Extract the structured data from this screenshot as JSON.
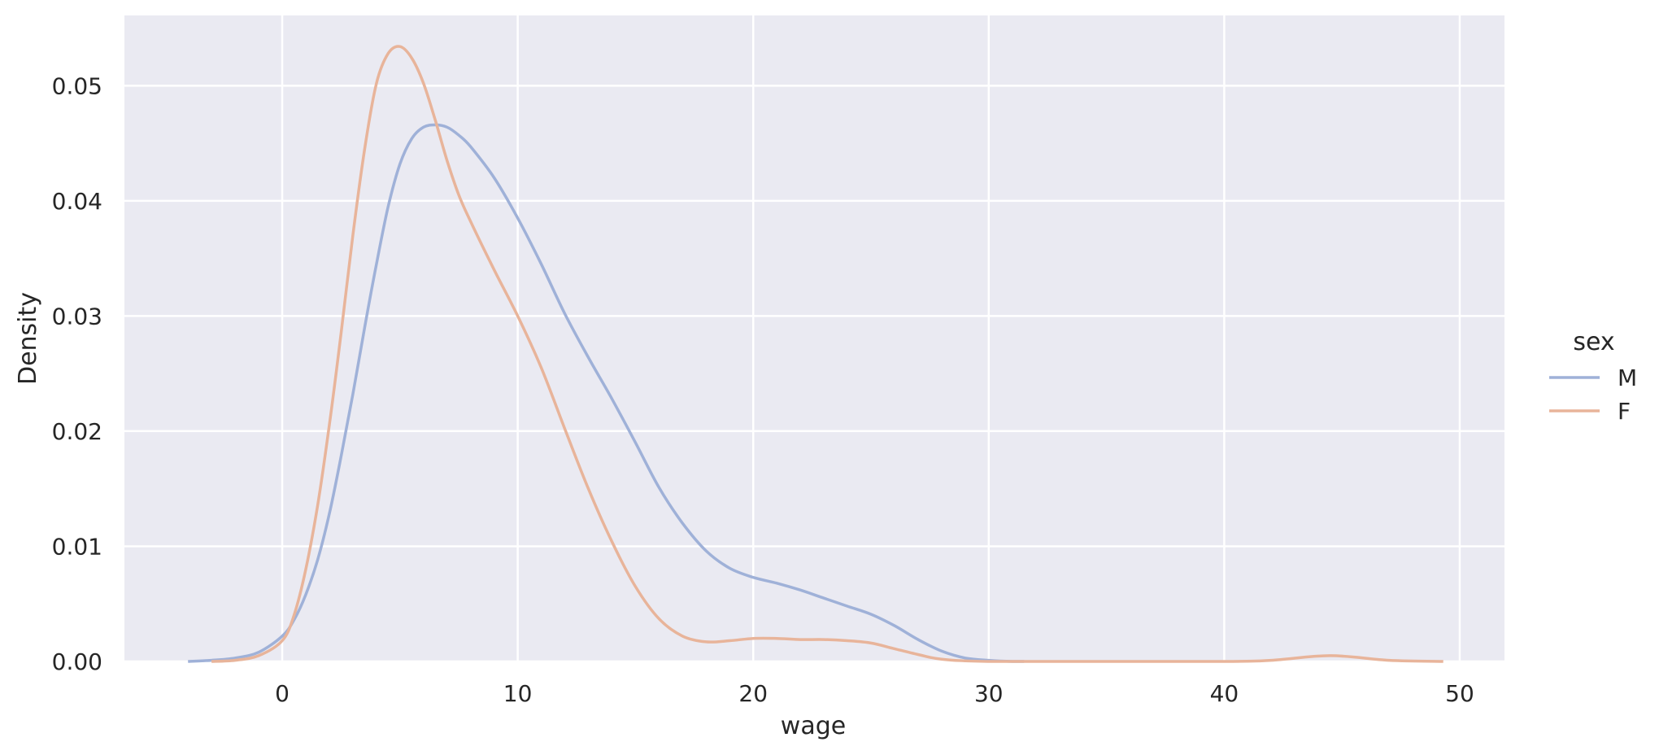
{
  "chart_data": {
    "type": "line",
    "title": "",
    "xlabel": "wage",
    "ylabel": "Density",
    "xlim": [
      -6.7,
      51.9
    ],
    "ylim": [
      0,
      0.0561
    ],
    "xticks": [
      0,
      10,
      20,
      30,
      40,
      50
    ],
    "xtick_labels": [
      "0",
      "10",
      "20",
      "30",
      "40",
      "50"
    ],
    "yticks": [
      0,
      0.01,
      0.02,
      0.03,
      0.04,
      0.05
    ],
    "ytick_labels": [
      "0.00",
      "0.01",
      "0.02",
      "0.03",
      "0.04",
      "0.05"
    ],
    "grid": true,
    "background": "#eaeaf2",
    "legend": {
      "title": "sex",
      "placement": "right"
    },
    "series": [
      {
        "name": "M",
        "color": "#9fb1d8",
        "x": [
          -4,
          -3,
          -2,
          -1,
          0,
          0.5,
          1,
          1.5,
          2,
          2.5,
          3,
          3.5,
          4,
          4.5,
          5,
          5.5,
          6,
          6.5,
          7,
          7.5,
          8,
          9,
          10,
          11,
          12,
          13,
          14,
          15,
          16,
          17,
          18,
          19,
          20,
          21,
          22,
          23,
          24,
          25,
          26,
          27,
          28,
          29,
          30,
          31,
          31.5
        ],
        "y": [
          0,
          0.0001,
          0.0003,
          0.0008,
          0.0022,
          0.0036,
          0.0058,
          0.0088,
          0.0128,
          0.0178,
          0.0232,
          0.029,
          0.0345,
          0.0395,
          0.0432,
          0.0454,
          0.0464,
          0.0466,
          0.0464,
          0.0457,
          0.0447,
          0.042,
          0.0385,
          0.0345,
          0.0302,
          0.0264,
          0.0228,
          0.019,
          0.0151,
          0.012,
          0.0096,
          0.0081,
          0.0073,
          0.0068,
          0.0062,
          0.0055,
          0.0048,
          0.0041,
          0.0031,
          0.0019,
          0.0009,
          0.0003,
          0.0001,
          0,
          0
        ]
      },
      {
        "name": "F",
        "color": "#e8b49a",
        "x": [
          -3,
          -2,
          -1,
          0,
          0.5,
          1,
          1.5,
          2,
          2.5,
          3,
          3.5,
          4,
          4.5,
          5,
          5.5,
          6,
          6.5,
          7,
          7.5,
          8,
          9,
          10,
          11,
          12,
          13,
          14,
          15,
          16,
          17,
          18,
          19,
          20,
          21,
          22,
          23,
          24,
          25,
          26,
          27,
          28,
          30,
          35,
          40,
          42,
          44.5,
          47,
          49.3
        ],
        "y": [
          0,
          0.0001,
          0.0005,
          0.0018,
          0.004,
          0.008,
          0.0135,
          0.0205,
          0.0285,
          0.037,
          0.0445,
          0.0502,
          0.0528,
          0.0534,
          0.0524,
          0.0502,
          0.047,
          0.0435,
          0.0405,
          0.0382,
          0.034,
          0.03,
          0.0255,
          0.0202,
          0.015,
          0.0104,
          0.0065,
          0.0037,
          0.0022,
          0.0017,
          0.0018,
          0.002,
          0.002,
          0.0019,
          0.0019,
          0.0018,
          0.0016,
          0.0011,
          0.0006,
          0.0002,
          0,
          0,
          0,
          0.0001,
          0.0005,
          0.0001,
          0
        ]
      }
    ]
  }
}
